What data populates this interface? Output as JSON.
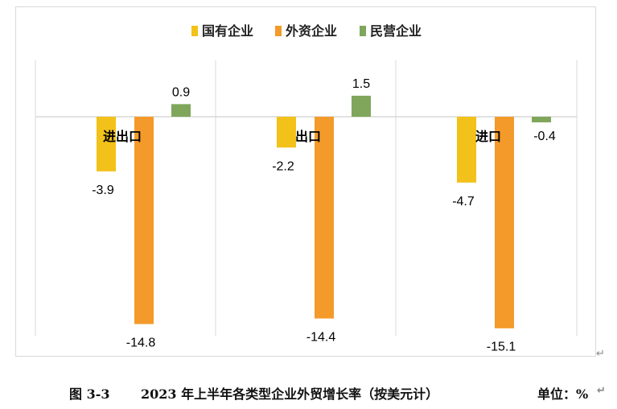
{
  "chart_data": {
    "type": "bar",
    "categories": [
      "进出口",
      "出口",
      "进口"
    ],
    "series": [
      {
        "name": "国有企业",
        "color": "#F2C11A",
        "values": [
          -3.9,
          -2.2,
          -4.7
        ]
      },
      {
        "name": "外资企业",
        "color": "#F39A2A",
        "values": [
          -14.8,
          -14.4,
          -15.1
        ]
      },
      {
        "name": "民营企业",
        "color": "#7FA65A",
        "values": [
          0.9,
          1.5,
          -0.4
        ]
      }
    ],
    "ylim": [
      -15.5,
      4.0
    ],
    "grid": false,
    "legend": "top"
  },
  "caption": {
    "figure_no": "图 3-3",
    "title": "2023 年上半年各类型企业外贸增长率（按美元计）",
    "unit": "单位：%"
  }
}
